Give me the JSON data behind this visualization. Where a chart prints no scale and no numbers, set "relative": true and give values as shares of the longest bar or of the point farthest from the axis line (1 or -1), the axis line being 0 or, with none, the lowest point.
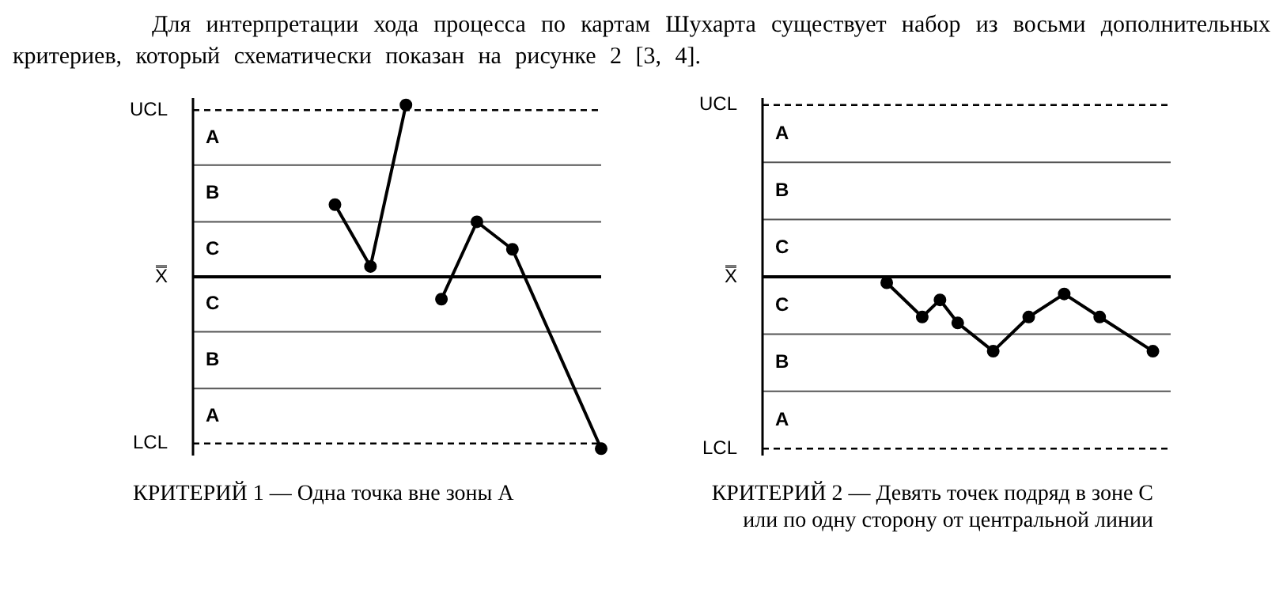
{
  "chart_data": [
    {
      "type": "line",
      "title": "Для интерпретации хода процесса по картам Шухарта существует набор из восьми дополнительных критериев, который схематически показан на рисунке 2 [3, 4].",
      "annotations": [
        "КРИТЕРИЙ 1 — Одна точка вне зоны А",
        "A",
        "B",
        "C",
        "C",
        "B",
        "A"
      ],
      "relative": true,
      "marker": "circle",
      "line_style": "solid",
      "categories": [
        null,
        null,
        null,
        null,
        null,
        null,
        null,
        null,
        null,
        null,
        null,
        null,
        null,
        null,
        null,
        null,
        null,
        null,
        null,
        null,
        null,
        null,
        null,
        null
      ],
      "series": [
        {
          "color": "#000000",
          "values": [
            null,
            null,
            null,
            null,
            null,
            null,
            null,
            null,
            0.42,
            null,
            0.06,
            null,
            1,
            null,
            null,
            null,
            null,
            null,
            null,
            null,
            null,
            null,
            null,
            null
          ]
        },
        {
          "color": "#000000",
          "values": [
            null,
            null,
            null,
            null,
            null,
            null,
            null,
            null,
            null,
            null,
            null,
            null,
            null,
            null,
            -0.13,
            null,
            0.32,
            null,
            0.16,
            null,
            null,
            null,
            null,
            -1
          ]
        }
      ],
      "ref_lines": [
        {
          "axis": "y",
          "value": 0.97,
          "label": "UCL",
          "color": "#000000",
          "line_style": "dashed"
        },
        {
          "axis": "y",
          "value": 0.65,
          "color": "#555555",
          "line_style": "solid"
        },
        {
          "axis": "y",
          "value": 0.32,
          "color": "#555555",
          "line_style": "solid"
        },
        {
          "axis": "y",
          "value": 0,
          "label": "X̿",
          "color": "#000000",
          "line_style": "solid"
        },
        {
          "axis": "y",
          "value": -0.32,
          "color": "#555555",
          "line_style": "solid"
        },
        {
          "axis": "y",
          "value": -0.65,
          "color": "#555555",
          "line_style": "solid"
        },
        {
          "axis": "y",
          "value": -0.97,
          "label": "LCL",
          "color": "#000000",
          "line_style": "dashed"
        }
      ]
    },
    {
      "type": "line",
      "annotations": [
        "КРИТЕРИЙ 2 — Девять точек подряд в зоне C или по одну сторону от центральной линии",
        "A",
        "B",
        "C",
        "C",
        "B",
        "A"
      ],
      "relative": true,
      "marker": "circle",
      "line_style": "solid",
      "categories": [
        null,
        null,
        null,
        null,
        null,
        null,
        null,
        null,
        null,
        null,
        null,
        null,
        null,
        null,
        null,
        null,
        null,
        null,
        null,
        null,
        null,
        null,
        null,
        null
      ],
      "series": [
        {
          "color": "#000000",
          "values": [
            null,
            null,
            null,
            null,
            null,
            null,
            null,
            -0.08,
            null,
            -0.54,
            -0.31,
            -0.62,
            null,
            -1,
            null,
            -0.54,
            null,
            -0.23,
            null,
            -0.54,
            null,
            null,
            -1,
            null
          ]
        }
      ],
      "ref_lines": [
        {
          "axis": "y",
          "value": 2.31,
          "label": "UCL",
          "color": "#000000",
          "line_style": "dashed"
        },
        {
          "axis": "y",
          "value": 1.54,
          "color": "#555555",
          "line_style": "solid"
        },
        {
          "axis": "y",
          "value": 0.77,
          "color": "#555555",
          "line_style": "solid"
        },
        {
          "axis": "y",
          "value": 0,
          "label": "X̿",
          "color": "#000000",
          "line_style": "solid"
        },
        {
          "axis": "y",
          "value": -0.77,
          "color": "#555555",
          "line_style": "solid"
        },
        {
          "axis": "y",
          "value": -1.54,
          "color": "#555555",
          "line_style": "solid"
        },
        {
          "axis": "y",
          "value": -2.31,
          "label": "LCL",
          "color": "#000000",
          "line_style": "dashed"
        }
      ]
    }
  ]
}
